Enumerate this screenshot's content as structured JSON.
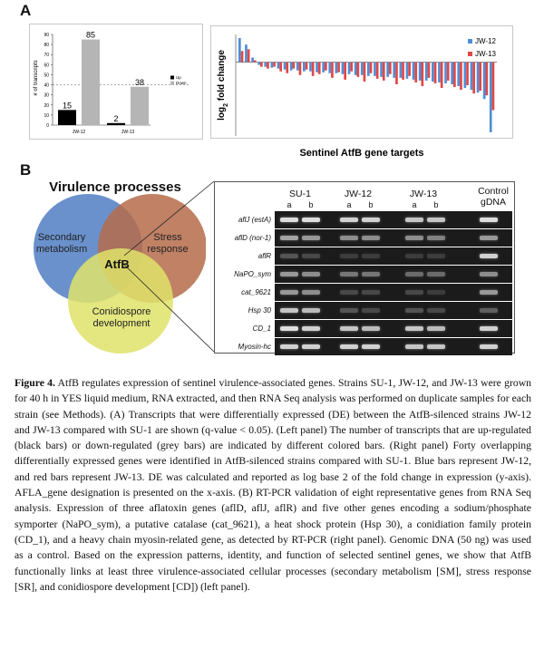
{
  "panel_a_label": "A",
  "panel_b_label": "B",
  "chart_data": [
    {
      "type": "bar",
      "title": "",
      "ylabel": "# of transcripts",
      "xlabel": "",
      "ylim": [
        0,
        90
      ],
      "yticks": [
        0,
        10,
        20,
        30,
        40,
        50,
        60,
        70,
        80,
        90
      ],
      "categories": [
        "JW-12",
        "JW-13"
      ],
      "series": [
        {
          "name": "Up",
          "color": "#000000",
          "values": [
            15,
            2
          ]
        },
        {
          "name": "Down",
          "color": "#b5b5b5",
          "values": [
            85,
            38
          ]
        }
      ],
      "grid": false,
      "legend": "right"
    },
    {
      "type": "bar",
      "title": "",
      "xlabel": "Sentinel AtfB gene targets",
      "ylabel": "log2 fold change",
      "ylabel_base": "log",
      "ylabel_sub": "2",
      "ylabel_rest": " fold change",
      "ylim": [
        -8,
        3
      ],
      "grid": false,
      "legend": "top-right",
      "series": [
        {
          "name": "JW-12",
          "color": "#4f8fd6",
          "values": [
            2.6,
            1.9,
            0.5,
            -0.3,
            -0.5,
            -0.6,
            -0.7,
            -0.8,
            -0.9,
            -0.9,
            -1.0,
            -1.0,
            -1.1,
            -1.1,
            -1.2,
            -1.2,
            -1.3,
            -1.3,
            -1.4,
            -1.4,
            -1.5,
            -1.5,
            -1.6,
            -1.6,
            -1.7,
            -1.7,
            -1.8,
            -1.9,
            -2.0,
            -2.0,
            -2.1,
            -2.2,
            -2.3,
            -2.4,
            -2.6,
            -2.8,
            -3.0,
            -3.3,
            -4.0,
            -7.6
          ]
        },
        {
          "name": "JW-13",
          "color": "#e04848",
          "values": [
            1.2,
            1.4,
            0.2,
            -0.5,
            -0.7,
            -0.5,
            -1.0,
            -1.2,
            -0.7,
            -1.4,
            -0.8,
            -1.5,
            -1.3,
            -0.9,
            -1.7,
            -1.1,
            -1.9,
            -1.0,
            -1.6,
            -2.1,
            -1.2,
            -1.8,
            -2.0,
            -1.3,
            -2.4,
            -1.9,
            -1.5,
            -2.2,
            -2.6,
            -1.7,
            -2.3,
            -2.8,
            -2.0,
            -2.7,
            -3.0,
            -2.5,
            -3.4,
            -3.1,
            -3.6,
            -5.2
          ]
        }
      ]
    }
  ],
  "venn": {
    "title": "Virulence processes",
    "sm_label_1": "Secondary",
    "sm_label_2": "metabolism",
    "sr_label_1": "Stress",
    "sr_label_2": "response",
    "cd_label_1": "Conidiospore",
    "cd_label_2": "development",
    "center_label": "AtfB",
    "colors": {
      "sm": "#5a85c6",
      "sr": "#b56b4a",
      "cd": "#dfe36a"
    }
  },
  "gel": {
    "strains": [
      "SU-1",
      "JW-12",
      "JW-13"
    ],
    "control_1": "Control",
    "control_2": "gDNA",
    "replicates": [
      "a",
      "b",
      "a",
      "b",
      "a",
      "b"
    ],
    "genes": [
      "aflJ (estA)",
      "aflD (nor-1)",
      "aflR",
      "NaPO_sym",
      "cat_9621",
      "Hsp 30",
      "CD_1",
      "Myosin-hc"
    ],
    "band_intensity": [
      [
        0.85,
        0.85,
        0.8,
        0.8,
        0.75,
        0.75,
        0.85
      ],
      [
        0.6,
        0.55,
        0.5,
        0.5,
        0.5,
        0.45,
        0.55
      ],
      [
        0.25,
        0.2,
        0.15,
        0.15,
        0.15,
        0.15,
        0.8
      ],
      [
        0.55,
        0.5,
        0.4,
        0.4,
        0.35,
        0.35,
        0.5
      ],
      [
        0.55,
        0.5,
        0.2,
        0.2,
        0.2,
        0.15,
        0.55
      ],
      [
        0.75,
        0.7,
        0.25,
        0.2,
        0.25,
        0.2,
        0.3
      ],
      [
        0.85,
        0.8,
        0.75,
        0.7,
        0.75,
        0.7,
        0.8
      ],
      [
        0.8,
        0.8,
        0.8,
        0.8,
        0.75,
        0.75,
        0.8
      ]
    ]
  },
  "caption": {
    "figure_label": "Figure 4.",
    "text": " AtfB regulates expression of sentinel virulence-associated genes. Strains SU-1, JW-12, and JW-13 were grown for 40 h in YES liquid medium, RNA extracted, and then RNA Seq analysis was performed on duplicate samples for each strain (see Methods). (A) Transcripts that were differentially expressed (DE) between the AtfB-silenced strains JW-12 and JW-13 compared with SU-1 are shown (q-value < 0.05). (Left panel) The number of transcripts that are up-regulated (black bars) or down-regulated (grey bars) are indicated by different colored bars. (Right panel) Forty overlapping differentially expressed genes were identified in AtfB-silenced strains compared with SU-1. Blue bars represent JW-12, and red bars represent JW-13. DE was calculated and reported as log base 2 of the fold change in expression (y-axis). AFLA_gene designation is presented on the x-axis. (B) RT-PCR validation of eight representative genes from RNA Seq analysis. Expression of three aflatoxin genes (aflD, aflJ, aflR) and five other genes encoding a sodium/phosphate symporter (NaPO_sym), a putative catalase (cat_9621), a heat shock protein (Hsp 30), a conidiation family protein (CD_1), and a heavy chain myosin-related gene, as detected by RT-PCR (right panel). Genomic DNA (50 ng) was used as a control. Based on the expression patterns, identity, and function of selected sentinel genes, we show that AtfB functionally links at least three virulence-associated cellular processes (secondary metabolism [SM], stress response [SR], and conidiospore development [CD]) (left panel)."
  }
}
